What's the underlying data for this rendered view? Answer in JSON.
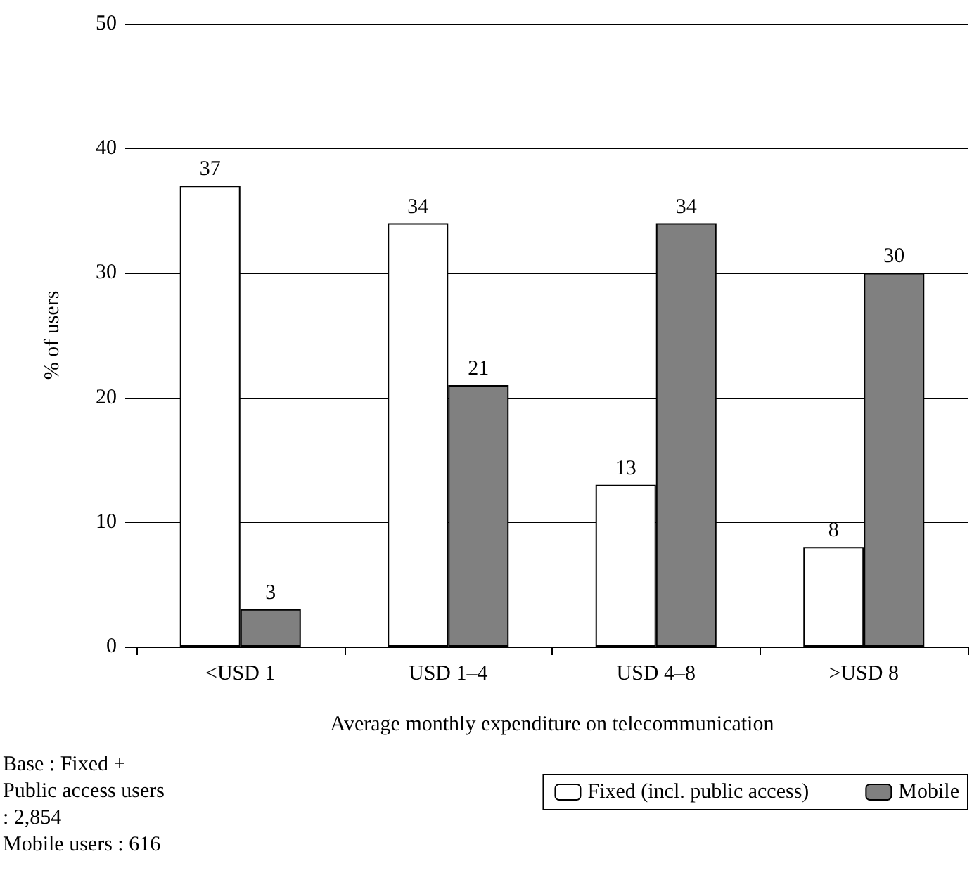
{
  "chart_data": {
    "type": "bar",
    "categories": [
      "<USD 1",
      "USD 1–4",
      "USD 4–8",
      ">USD 8"
    ],
    "series": [
      {
        "name": "Fixed (incl. public access)",
        "color": "#ffffff",
        "values": [
          37,
          34,
          13,
          8
        ]
      },
      {
        "name": "Mobile",
        "color": "#808080",
        "values": [
          3,
          21,
          34,
          30
        ]
      }
    ],
    "xlabel": "Average monthly expenditure on telecommunication",
    "ylabel": "% of users",
    "ylim": [
      0,
      50
    ],
    "yticks": [
      0,
      10,
      20,
      30,
      40,
      50
    ],
    "grid": "y",
    "legend": "bottom right",
    "data_labels": true,
    "annotations": [
      "Base : Fixed + Public access users : 2,854",
      "Mobile users : 616"
    ]
  }
}
